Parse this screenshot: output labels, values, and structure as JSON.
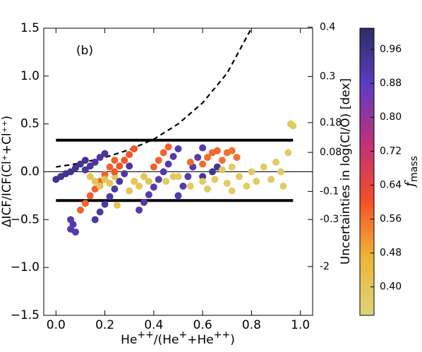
{
  "chart_data": {
    "type": "scatter",
    "annotation": "(b)",
    "xlabel": {
      "base": "He",
      "sup1": "++",
      "mid": "/(He",
      "sup2": "+",
      "plus": "+He",
      "sup3": "++",
      "end": ")"
    },
    "ylabel": "ΔICF/ICF(Cl⁺+Cl⁺⁺)",
    "y2label": "Uncertainties in log(Cl/O) [dex]",
    "colorbar_label": {
      "main": "f",
      "sub": "mass"
    },
    "xlim": [
      -0.05,
      1.05
    ],
    "ylim": [
      -1.5,
      1.5
    ],
    "xticks": [
      {
        "value": 0,
        "label": "0.0"
      },
      0.2,
      0.4,
      0.6,
      0.8,
      {
        "value": 1,
        "label": "1.0"
      }
    ],
    "yticks": [
      {
        "value": -1.5,
        "label": "−1.5"
      },
      {
        "value": -1,
        "label": "−1.0"
      },
      {
        "value": -0.5,
        "label": "−0.5"
      },
      {
        "value": 0,
        "label": "0.0"
      },
      0.5,
      {
        "value": 1,
        "label": "1.0"
      },
      1.5
    ],
    "y2ticks": [
      0.4,
      0.3,
      0.18,
      0.08,
      -0.1,
      -0.3,
      -2
    ],
    "clim": [
      0.333,
      1.01
    ],
    "cticks": [
      {
        "value": 0.4,
        "label": "0.40"
      },
      0.48,
      0.56,
      0.64,
      0.72,
      {
        "value": 0.8,
        "label": "0.80"
      },
      0.88,
      0.96
    ],
    "colormap": [
      "#dcd57a",
      "#efb536",
      "#f25028",
      "#c0307a",
      "#5e3cc0",
      "#2c2e68"
    ],
    "hlines": [
      {
        "y": 0.33,
        "style": "thick"
      },
      {
        "y": -0.3,
        "style": "thick"
      },
      {
        "y": 0,
        "style": "thin"
      }
    ],
    "hline_xrange": [
      0,
      0.97
    ],
    "curve": {
      "x": [
        0,
        0.1,
        0.2,
        0.3,
        0.4,
        0.5,
        0.6,
        0.7,
        0.8
      ],
      "values": [
        0.05,
        0.09,
        0.15,
        0.23,
        0.34,
        0.5,
        0.72,
        1.03,
        1.5
      ]
    },
    "x": [
      0,
      0.02,
      0.04,
      0.06,
      0.08,
      0.1,
      0.12,
      0.06,
      0.07,
      0.06,
      0.08,
      0.1,
      0.12,
      0.14,
      0.16,
      0.18,
      0.2,
      0.22,
      0.24,
      0.12,
      0.14,
      0.16,
      0.18,
      0.2,
      0.14,
      0.16,
      0.18,
      0.2,
      0.22,
      0.24,
      0.16,
      0.18,
      0.2,
      0.22,
      0.24,
      0.26,
      0.28,
      0.3,
      0.24,
      0.26,
      0.28,
      0.3,
      0.32,
      0.25,
      0.3,
      0.32,
      0.34,
      0.36,
      0.38,
      0.34,
      0.36,
      0.38,
      0.4,
      0.42,
      0.44,
      0.46,
      0.48,
      0.5,
      0.4,
      0.42,
      0.44,
      0.46,
      0.5,
      0.52,
      0.54,
      0.56,
      0.58,
      0.6,
      0.55,
      0.6,
      0.62,
      0.64,
      0.66,
      0.6,
      0.64,
      0.66,
      0.5,
      0.55,
      0.6,
      0.65,
      0.68,
      0.7,
      0.72,
      0.75,
      0.78,
      0.8,
      0.82,
      0.85,
      0.88,
      0.9,
      0.92,
      0.95,
      0.96,
      0.97,
      0.93,
      0.72,
      0.62,
      0.45,
      0.48,
      0.68,
      0.7,
      0.72,
      0.74
    ],
    "values": [
      -0.08,
      -0.05,
      -0.02,
      0,
      0.04,
      0.08,
      0.12,
      -0.6,
      -0.55,
      -0.5,
      -0.63,
      -0.4,
      -0.33,
      -0.25,
      -0.18,
      -0.1,
      -0.03,
      0.05,
      0.12,
      0.02,
      0.06,
      0.1,
      0.15,
      0.19,
      -0.05,
      -0.1,
      -0.15,
      -0.08,
      -0.12,
      -0.05,
      -0.5,
      -0.42,
      -0.34,
      -0.26,
      -0.18,
      -0.1,
      -0.02,
      0.06,
      0,
      0.06,
      0.12,
      0.18,
      0.24,
      -0.35,
      -0.2,
      -0.1,
      -0.15,
      -0.05,
      -0.1,
      -0.4,
      -0.32,
      -0.24,
      -0.16,
      -0.08,
      0,
      0.08,
      0.16,
      0.24,
      0.05,
      0.12,
      0.2,
      0.26,
      -0.25,
      -0.15,
      -0.05,
      0.05,
      0.15,
      0.25,
      0.1,
      0.08,
      0.15,
      0.2,
      0.22,
      -0.05,
      0,
      0.05,
      -0.05,
      -0.15,
      -0.1,
      -0.08,
      0.02,
      -0.12,
      0.05,
      -0.05,
      -0.15,
      0,
      -0.1,
      0.05,
      -0.08,
      0.1,
      0,
      0.2,
      0.5,
      0.48,
      -0.15,
      -0.2,
      -0.18,
      -0.1,
      -0.05,
      0.12,
      0.2,
      0.22,
      0.15
    ],
    "color_values": [
      0.95,
      0.95,
      0.95,
      0.95,
      0.95,
      0.95,
      0.95,
      0.9,
      0.9,
      0.9,
      0.9,
      0.58,
      0.58,
      0.58,
      0.58,
      0.58,
      0.58,
      0.58,
      0.58,
      0.93,
      0.93,
      0.93,
      0.93,
      0.93,
      0.4,
      0.4,
      0.4,
      0.4,
      0.4,
      0.4,
      0.92,
      0.92,
      0.92,
      0.92,
      0.92,
      0.92,
      0.92,
      0.92,
      0.6,
      0.6,
      0.6,
      0.6,
      0.6,
      0.4,
      0.4,
      0.4,
      0.4,
      0.4,
      0.4,
      0.9,
      0.9,
      0.9,
      0.9,
      0.9,
      0.9,
      0.9,
      0.9,
      0.9,
      0.58,
      0.58,
      0.58,
      0.58,
      0.9,
      0.9,
      0.9,
      0.9,
      0.9,
      0.9,
      0.57,
      0.57,
      0.57,
      0.57,
      0.57,
      0.95,
      0.95,
      0.95,
      0.38,
      0.38,
      0.38,
      0.38,
      0.38,
      0.38,
      0.38,
      0.38,
      0.38,
      0.38,
      0.38,
      0.38,
      0.38,
      0.38,
      0.38,
      0.38,
      0.38,
      0.38,
      0.38,
      0.38,
      0.38,
      0.38,
      0.38,
      0.56,
      0.56,
      0.56,
      0.56
    ]
  }
}
